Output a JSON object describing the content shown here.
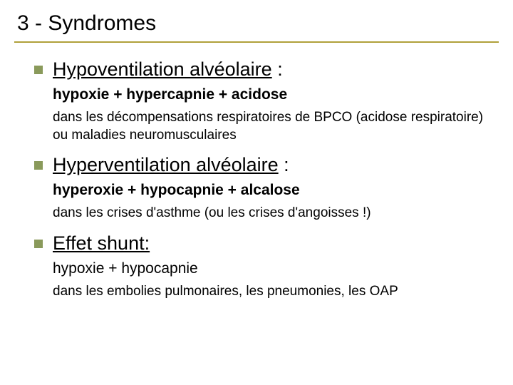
{
  "colors": {
    "title_border": "#b0a13a",
    "bullet": "#8a9a5b",
    "text": "#000000",
    "background": "#ffffff"
  },
  "typography": {
    "title_fontsize": 30,
    "heading_fontsize": 27,
    "bold_fontsize": 21,
    "desc_fontsize": 19,
    "font_family": "Arial"
  },
  "title": "3 - Syndromes",
  "items": [
    {
      "heading_underlined": "Hypoventilation alvéolaire",
      "heading_suffix": " :",
      "bold_line": "hypoxie + hypercapnie + acidose",
      "desc": "dans les décompensations respiratoires de BPCO (acidose respiratoire) ou maladies neuromusculaires"
    },
    {
      "heading_underlined": "Hyperventilation alvéolaire",
      "heading_suffix": " :",
      "bold_line": "hyperoxie + hypocapnie + alcalose",
      "desc": "dans les crises d'asthme (ou les crises d'angoisses !)"
    },
    {
      "heading_underlined": "Effet shunt:",
      "heading_suffix": "",
      "normal_line": "hypoxie + hypocapnie",
      "desc": "dans les embolies pulmonaires, les pneumonies, les OAP"
    }
  ]
}
